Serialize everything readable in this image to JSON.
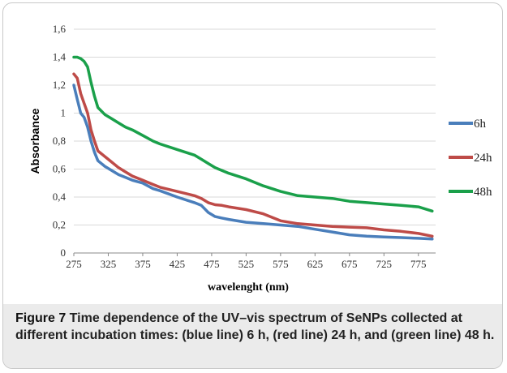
{
  "caption": {
    "label": "Figure 7",
    "text": " Time dependence of the UV–vis spectrum of SeNPs collected at different incubation times: (blue line) 6 h, (red line) 24 h, and (green line) 48 h."
  },
  "chart_data": {
    "type": "line",
    "xlabel": "wavelenght (nm)",
    "ylabel": "Absorbance",
    "xlim": [
      275,
      800
    ],
    "ylim": [
      0,
      1.6
    ],
    "xticks": [
      "275",
      "325",
      "375",
      "425",
      "475",
      "525",
      "575",
      "625",
      "675",
      "725",
      "775"
    ],
    "yticks": [
      "0",
      "0,2",
      "0,4",
      "0,6",
      "0,8",
      "1",
      "1,2",
      "1,4",
      "1,6"
    ],
    "grid": true,
    "legend": "right",
    "x": [
      275,
      280,
      285,
      290,
      295,
      300,
      305,
      310,
      320,
      330,
      340,
      350,
      360,
      375,
      390,
      400,
      425,
      450,
      460,
      470,
      480,
      490,
      500,
      525,
      550,
      575,
      600,
      625,
      650,
      675,
      700,
      725,
      750,
      775,
      795
    ],
    "series": [
      {
        "name": "6h",
        "color": "#4a7ebb",
        "values": [
          1.2,
          1.1,
          1.0,
          0.97,
          0.9,
          0.8,
          0.72,
          0.66,
          0.62,
          0.59,
          0.56,
          0.54,
          0.52,
          0.5,
          0.46,
          0.445,
          0.4,
          0.36,
          0.34,
          0.29,
          0.26,
          0.25,
          0.24,
          0.22,
          0.21,
          0.2,
          0.19,
          0.17,
          0.15,
          0.13,
          0.12,
          0.115,
          0.11,
          0.105,
          0.1
        ]
      },
      {
        "name": "24h",
        "color": "#be4b48",
        "values": [
          1.28,
          1.25,
          1.14,
          1.07,
          1.0,
          0.88,
          0.8,
          0.73,
          0.69,
          0.65,
          0.61,
          0.58,
          0.55,
          0.52,
          0.49,
          0.47,
          0.44,
          0.41,
          0.39,
          0.36,
          0.345,
          0.34,
          0.33,
          0.31,
          0.28,
          0.23,
          0.21,
          0.2,
          0.19,
          0.185,
          0.18,
          0.165,
          0.155,
          0.14,
          0.12
        ]
      },
      {
        "name": "48h",
        "color": "#1aa04a",
        "values": [
          1.4,
          1.4,
          1.39,
          1.37,
          1.33,
          1.22,
          1.12,
          1.04,
          0.99,
          0.96,
          0.93,
          0.9,
          0.88,
          0.84,
          0.8,
          0.78,
          0.74,
          0.7,
          0.67,
          0.64,
          0.61,
          0.59,
          0.57,
          0.53,
          0.48,
          0.44,
          0.41,
          0.4,
          0.39,
          0.37,
          0.36,
          0.35,
          0.34,
          0.33,
          0.3
        ]
      }
    ]
  }
}
